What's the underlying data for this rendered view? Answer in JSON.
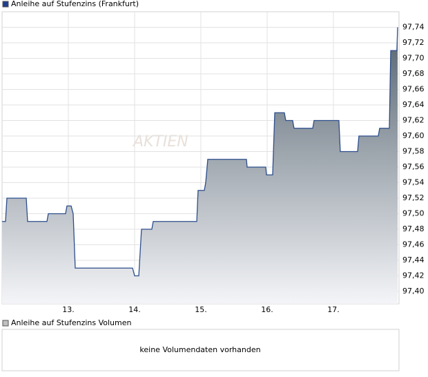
{
  "chart_data": {
    "type": "line",
    "title": "Anleihe auf Stufenzins (Frankfurt)",
    "watermark": "AKTIEN",
    "color": "#2b4d8c",
    "legend_color": "#1f3f8f",
    "grid": true,
    "x": [
      12.0,
      12.052,
      12.073,
      12.365,
      12.385,
      12.677,
      12.698,
      12.958,
      12.979,
      13.042,
      13.073,
      13.104,
      13.969,
      14.0,
      14.063,
      14.104,
      14.26,
      14.281,
      14.938,
      14.958,
      15.052,
      15.073,
      15.104,
      15.688,
      15.698,
      15.979,
      15.99,
      16.083,
      16.115,
      16.26,
      16.281,
      16.385,
      16.406,
      16.688,
      16.708,
      17.083,
      17.104,
      17.365,
      17.385,
      17.677,
      17.698,
      17.844,
      17.865,
      17.958,
      17.969
    ],
    "values": [
      97.49,
      97.49,
      97.52,
      97.52,
      97.49,
      97.49,
      97.5,
      97.5,
      97.51,
      97.51,
      97.5,
      97.43,
      97.43,
      97.42,
      97.42,
      97.48,
      97.48,
      97.49,
      97.49,
      97.53,
      97.53,
      97.54,
      97.57,
      97.57,
      97.56,
      97.56,
      97.55,
      97.55,
      97.63,
      97.63,
      97.62,
      97.62,
      97.61,
      97.61,
      97.62,
      97.62,
      97.58,
      97.58,
      97.6,
      97.6,
      97.61,
      97.61,
      97.71,
      97.71,
      97.74
    ],
    "xlim": [
      12,
      17.99
    ],
    "ylim": [
      97.384,
      97.76
    ],
    "xticks": [
      {
        "value": 13,
        "label": "13."
      },
      {
        "value": 14,
        "label": "14."
      },
      {
        "value": 15,
        "label": "15."
      },
      {
        "value": 16,
        "label": "16."
      },
      {
        "value": 17,
        "label": "17."
      }
    ],
    "yticks": [
      {
        "value": 97.4,
        "label": "97,40"
      },
      {
        "value": 97.42,
        "label": "97,42"
      },
      {
        "value": 97.44,
        "label": "97,44"
      },
      {
        "value": 97.46,
        "label": "97,46"
      },
      {
        "value": 97.48,
        "label": "97,48"
      },
      {
        "value": 97.5,
        "label": "97,50"
      },
      {
        "value": 97.52,
        "label": "97,52"
      },
      {
        "value": 97.54,
        "label": "97,54"
      },
      {
        "value": 97.56,
        "label": "97,56"
      },
      {
        "value": 97.58,
        "label": "97,58"
      },
      {
        "value": 97.6,
        "label": "97,60"
      },
      {
        "value": 97.62,
        "label": "97,62"
      },
      {
        "value": 97.64,
        "label": "97,64"
      },
      {
        "value": 97.66,
        "label": "97,66"
      },
      {
        "value": 97.68,
        "label": "97,68"
      },
      {
        "value": 97.7,
        "label": "97,70"
      },
      {
        "value": 97.72,
        "label": "97,72"
      },
      {
        "value": 97.74,
        "label": "97,74"
      }
    ],
    "volume": {
      "title": "Anleihe auf Stufenzins Volumen",
      "color": "#c0c0c0",
      "message": "keine Volumendaten vorhanden"
    }
  }
}
